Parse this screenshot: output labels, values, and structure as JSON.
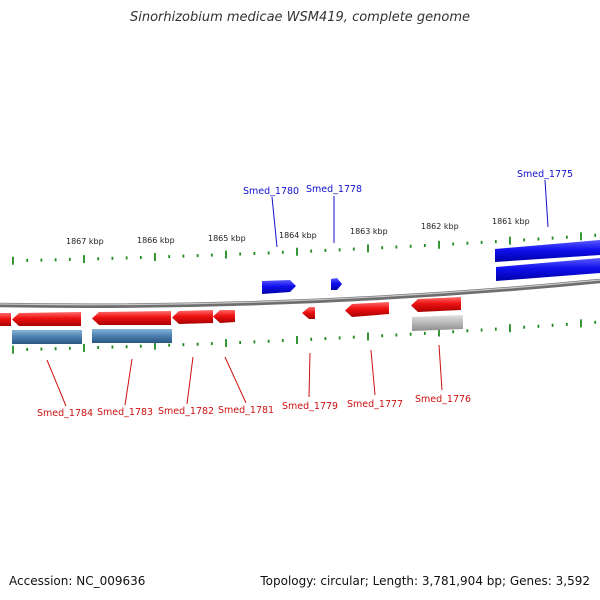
{
  "title": "Sinorhizobium medicae WSM419, complete genome",
  "footer": {
    "accession": "Accession: NC_009636",
    "topology": "Topology: circular; Length: 3,781,904 bp; Genes: 3,592"
  },
  "colors": {
    "forward_gene": "#1010ee",
    "reverse_gene": "#ee1111",
    "reverse_cds": "#4a7fb0",
    "pseudo_cds": "#b8b8b8",
    "tick": "#1f8a1f",
    "backbone": "#888888",
    "forward_label": "#1010cc",
    "reverse_label": "#cc1111"
  },
  "scale_labels": [
    "1867 kbp",
    "1866 kbp",
    "1865 kbp",
    "1864 kbp",
    "1863 kbp",
    "1862 kbp",
    "1861 kbp"
  ],
  "forward_genes": [
    "Smed_1780",
    "Smed_1778",
    "Smed_1775"
  ],
  "reverse_genes": [
    "Smed_1784",
    "Smed_1783",
    "Smed_1782",
    "Smed_1781",
    "Smed_1779",
    "Smed_1777",
    "Smed_1776"
  ]
}
